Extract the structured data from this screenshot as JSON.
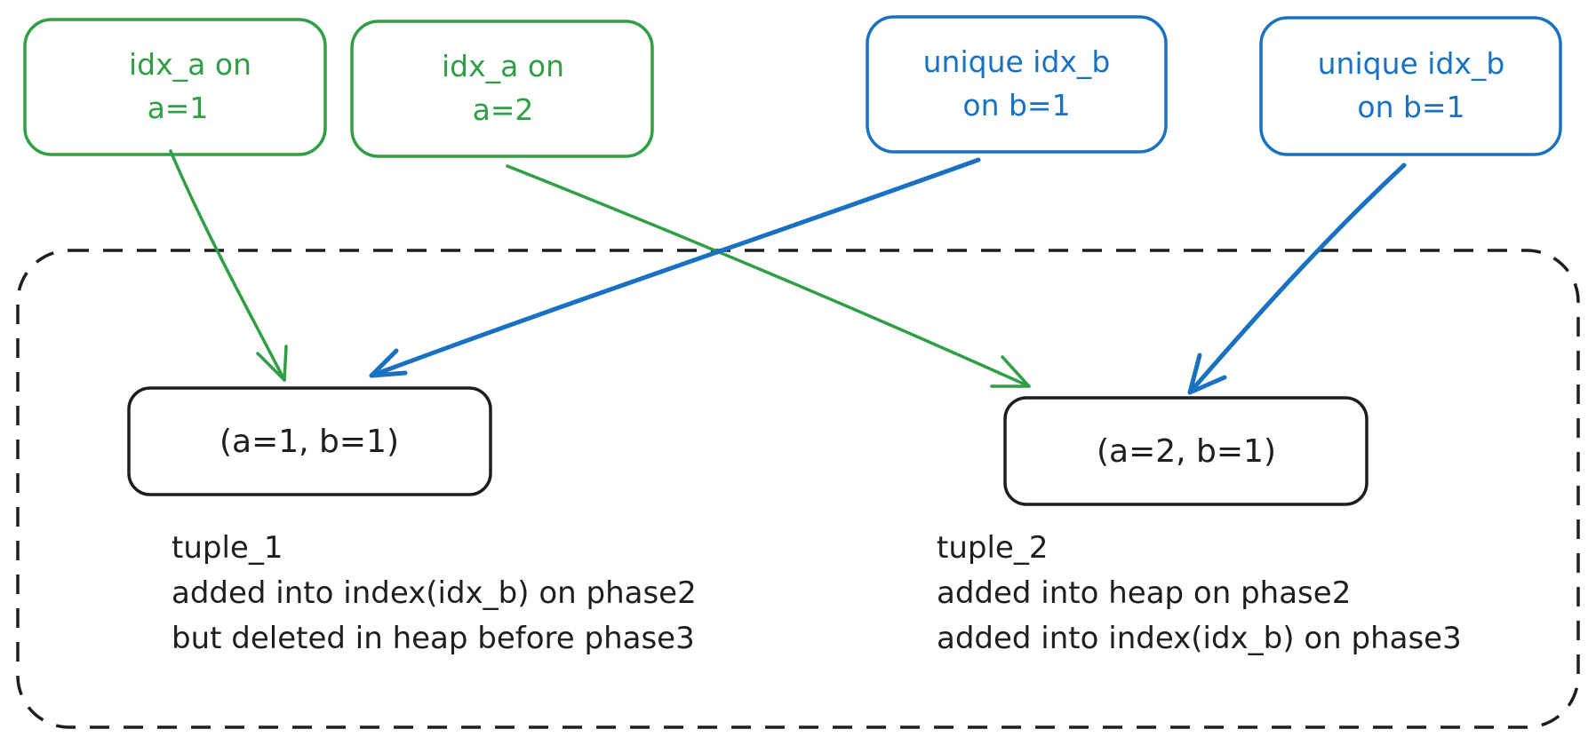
{
  "colors": {
    "green": "#2f9e44",
    "blue": "#1971c2",
    "black": "#1e1e1e"
  },
  "index_boxes": [
    {
      "line1": "idx_a on",
      "line2": "a=1",
      "color": "green"
    },
    {
      "line1": "idx_a on",
      "line2": "a=2",
      "color": "green"
    },
    {
      "line1": "unique idx_b",
      "line2": "on b=1",
      "color": "blue"
    },
    {
      "line1": "unique idx_b",
      "line2": "on b=1",
      "color": "blue"
    }
  ],
  "tuples": [
    {
      "label": "(a=1, b=1)"
    },
    {
      "label": "(a=2, b=1)"
    }
  ],
  "notes": [
    {
      "lines": [
        "tuple_1",
        "added into index(idx_b) on phase2",
        "but deleted in heap before phase3"
      ]
    },
    {
      "lines": [
        "tuple_2",
        "added into heap on phase2",
        "added into index(idx_b) on phase3"
      ]
    }
  ]
}
